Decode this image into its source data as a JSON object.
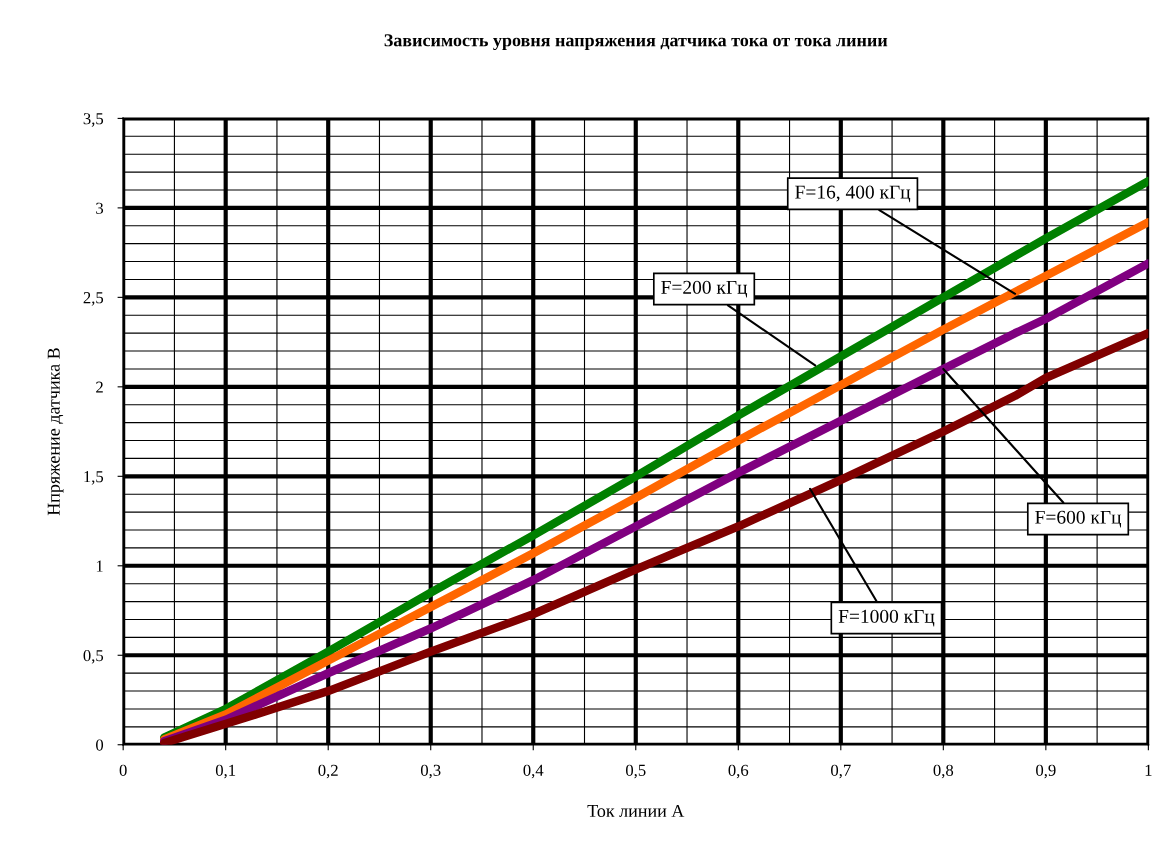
{
  "chart_data": {
    "type": "line",
    "title": "Зависимость уровня напряжения датчика тока от тока линии",
    "xlabel": "Ток линии А",
    "ylabel": "Нпряжение датчика В",
    "xlim": [
      0,
      1
    ],
    "ylim": [
      0,
      3.5
    ],
    "xticks": [
      0,
      {
        "value": 0.1,
        "label": "0,1"
      },
      {
        "value": 0.2,
        "label": "0,2"
      },
      {
        "value": 0.3,
        "label": "0,3"
      },
      {
        "value": 0.4,
        "label": "0,4"
      },
      {
        "value": 0.5,
        "label": "0,5"
      },
      {
        "value": 0.6,
        "label": "0,6"
      },
      {
        "value": 0.7,
        "label": "0,7"
      },
      {
        "value": 0.8,
        "label": "0,8"
      },
      {
        "value": 0.9,
        "label": "0,9"
      },
      1
    ],
    "yticks": [
      0,
      {
        "value": 0.5,
        "label": "0,5"
      },
      1,
      {
        "value": 1.5,
        "label": "1,5"
      },
      2,
      {
        "value": 2.5,
        "label": "2,5"
      },
      3,
      {
        "value": 3.5,
        "label": "3,5"
      }
    ],
    "grid": true,
    "legend": false,
    "marker": "none",
    "line_style": "solid",
    "series": [
      {
        "color": "#008000",
        "x": [
          0.04,
          0.1,
          0.2,
          0.3,
          0.4,
          0.5,
          0.6,
          0.7,
          0.8,
          0.9,
          1
        ],
        "values": [
          0.04,
          0.2,
          0.52,
          0.85,
          1.17,
          1.5,
          1.84,
          2.17,
          2.5,
          2.83,
          3.15
        ]
      },
      {
        "color": "#ff6600",
        "x": [
          0.04,
          0.1,
          0.2,
          0.3,
          0.4,
          0.5,
          0.6,
          0.7,
          0.8,
          0.9,
          1
        ],
        "values": [
          0.03,
          0.17,
          0.47,
          0.77,
          1.07,
          1.38,
          1.7,
          2.01,
          2.32,
          2.62,
          2.92
        ]
      },
      {
        "color": "#800080",
        "x": [
          0.04,
          0.1,
          0.2,
          0.3,
          0.4,
          0.5,
          0.6,
          0.7,
          0.8,
          0.87,
          0.9,
          1
        ],
        "values": [
          0.02,
          0.14,
          0.4,
          0.65,
          0.92,
          1.22,
          1.52,
          1.81,
          2.1,
          2.3,
          2.38,
          2.69
        ]
      },
      {
        "color": "#800000",
        "x": [
          0.04,
          0.13,
          0.2,
          0.3,
          0.4,
          0.5,
          0.6,
          0.7,
          0.8,
          0.87,
          0.9,
          1
        ],
        "values": [
          0.01,
          0.17,
          0.3,
          0.52,
          0.73,
          0.98,
          1.22,
          1.48,
          1.75,
          1.95,
          2.05,
          2.3
        ]
      }
    ],
    "annotations": [
      {
        "text": "F=16, 400 кГц",
        "x": 0.87,
        "y": 2.52
      },
      {
        "text": "F=200 кГц",
        "x": 0.675,
        "y": 2.12
      },
      {
        "text": "F=600 кГц",
        "x": 0.8,
        "y": 2.1
      },
      {
        "text": "F=1000 кГц",
        "x": 0.67,
        "y": 1.43
      }
    ]
  }
}
